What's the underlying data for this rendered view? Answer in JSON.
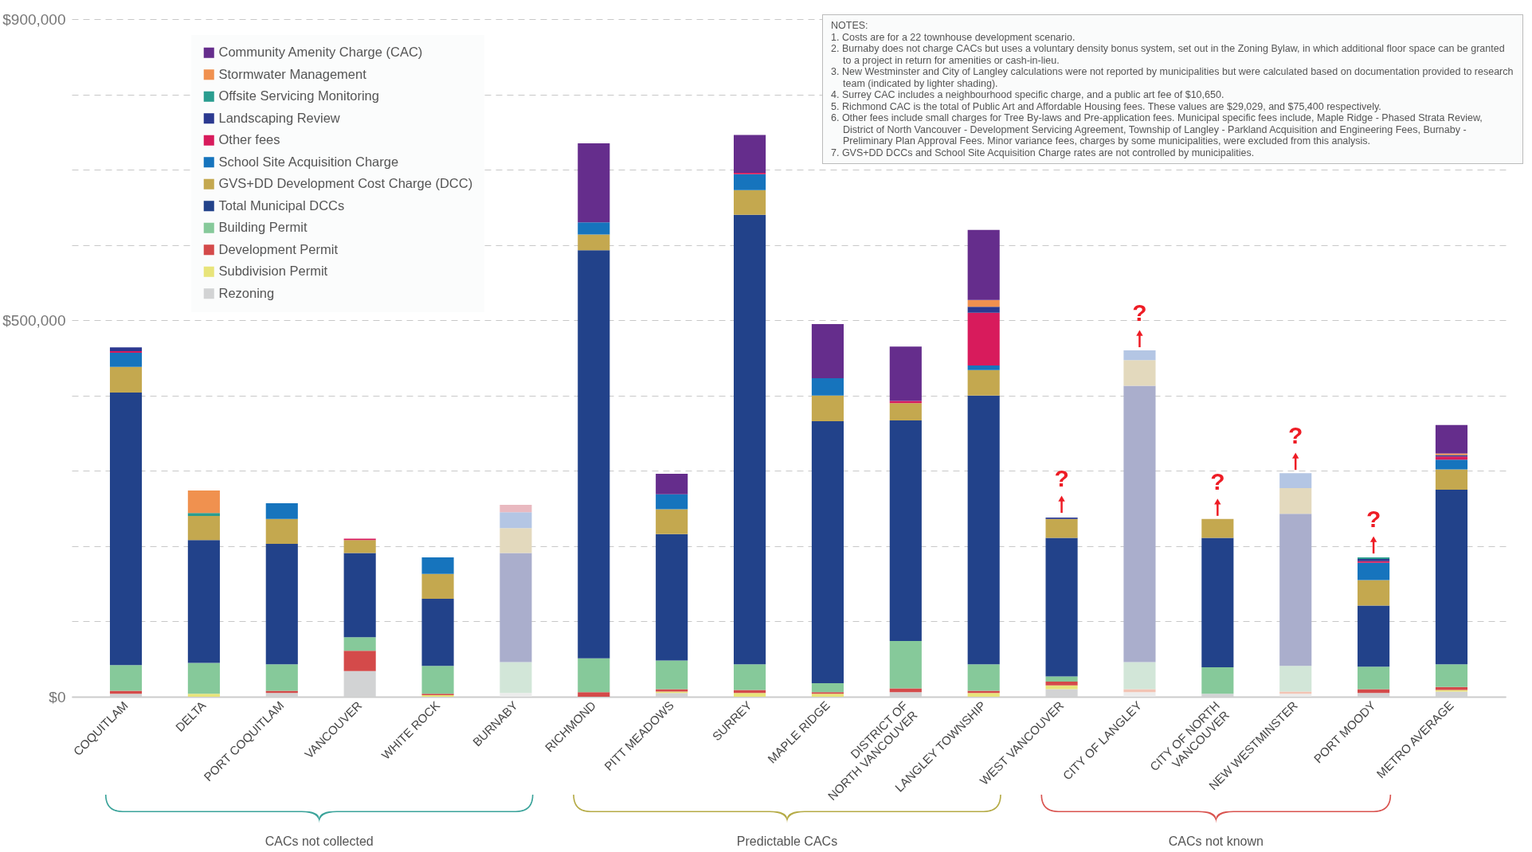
{
  "chart_data": {
    "type": "bar",
    "stacked": true,
    "grid": "y",
    "legend": "top left",
    "categories": [
      "COQUITLAM",
      "DELTA",
      "PORT COQUITLAM",
      "VANCOUVER",
      "WHITE ROCK",
      "BURNABY",
      "RICHMOND",
      "PITT MEADOWS",
      "SURREY",
      "MAPLE RIDGE",
      "DISTRICT OF NORTH VANCOUVER",
      "LANGLEY TOWNSHIP",
      "WEST VANCOUVER",
      "CITY OF LANGLEY",
      "CITY OF NORTH VANCOUVER",
      "NEW WESTMINSTER",
      "PORT MOODY",
      "METRO AVERAGE"
    ],
    "ylim": [
      0,
      900000
    ],
    "yticks": [
      {
        "value": 0,
        "label": "$0"
      },
      {
        "value": 100000,
        "label": null
      },
      {
        "value": 200000,
        "label": null
      },
      {
        "value": 300000,
        "label": null
      },
      {
        "value": 400000,
        "label": null
      },
      {
        "value": 500000,
        "label": "$500,000"
      },
      {
        "value": 600000,
        "label": null
      },
      {
        "value": 700000,
        "label": null
      },
      {
        "value": 800000,
        "label": null
      },
      {
        "value": 900000,
        "label": "$900,000"
      }
    ],
    "series": [
      {
        "name": "Rezoning",
        "color": "#d2d3d4",
        "colors": [
          "#d2d3d4",
          null,
          "#d2d3d4",
          "#d2d3d4",
          null,
          "#ececec",
          null,
          "#d2d3d4",
          null,
          null,
          "#d2d3d4",
          null,
          "#d2d3d4",
          "#ececec",
          "#d2d3d4",
          "#ececec",
          "#d2d3d4",
          "#d2d3d4"
        ],
        "values": [
          4000,
          null,
          5000,
          34000,
          null,
          5000,
          null,
          5000,
          null,
          null,
          6000,
          null,
          10000,
          6000,
          4000,
          4000,
          5000,
          7000
        ]
      },
      {
        "name": "Subdivision Permit",
        "color": "#e8e47a",
        "values": [
          null,
          4000,
          null,
          null,
          2000,
          null,
          null,
          2000,
          5000,
          4000,
          null,
          5000,
          5000,
          null,
          null,
          null,
          null,
          2000
        ]
      },
      {
        "name": "Development Permit",
        "color": "#d44a4a",
        "colors": [
          "#d44a4a",
          null,
          "#d44a4a",
          "#d44a4a",
          "#d44a4a",
          null,
          "#d44a4a",
          "#d44a4a",
          "#d44a4a",
          "#d44a4a",
          "#d44a4a",
          "#d44a4a",
          "#d44a4a",
          "#f2c4b4",
          null,
          "#f2c4b4",
          "#d44a4a",
          "#d44a4a"
        ],
        "values": [
          4000,
          null,
          3000,
          27000,
          2000,
          null,
          6000,
          3000,
          4000,
          2000,
          5000,
          3000,
          5000,
          4000,
          null,
          3000,
          5000,
          4000
        ]
      },
      {
        "name": "Building Permit",
        "color": "#86c99a",
        "colors": [
          "#86c99a",
          "#86c99a",
          "#86c99a",
          "#86c99a",
          "#86c99a",
          "#d2e6d8",
          "#86c99a",
          "#86c99a",
          "#86c99a",
          "#86c99a",
          "#86c99a",
          "#86c99a",
          "#86c99a",
          "#d2e6d8",
          "#86c99a",
          "#d2e6d8",
          "#86c99a",
          "#86c99a"
        ],
        "values": [
          34000,
          41000,
          35000,
          18000,
          37000,
          41000,
          45000,
          38000,
          34000,
          12000,
          63000,
          35000,
          7000,
          36000,
          35000,
          34000,
          30000,
          30000
        ]
      },
      {
        "name": "Total Municipal DCCs",
        "color": "#22428a",
        "colors": [
          "#22428a",
          "#22428a",
          "#22428a",
          "#22428a",
          "#22428a",
          "#aaaecc",
          "#22428a",
          "#22428a",
          "#22428a",
          "#22428a",
          "#22428a",
          "#22428a",
          "#22428a",
          "#aaaecc",
          "#22428a",
          "#aaaecc",
          "#22428a",
          "#22428a"
        ],
        "values": [
          362000,
          163000,
          160000,
          112000,
          89000,
          145000,
          542000,
          168000,
          597000,
          348000,
          293000,
          357000,
          184000,
          367000,
          172000,
          202000,
          81000,
          232000
        ]
      },
      {
        "name": "GVS+DD Development Cost Charge (DCC)",
        "color": "#c4a84f",
        "colors": [
          "#c4a84f",
          "#c4a84f",
          "#c4a84f",
          "#c4a84f",
          "#c4a84f",
          "#e3d9bd",
          "#c4a84f",
          "#c4a84f",
          "#c4a84f",
          "#c4a84f",
          "#c4a84f",
          "#c4a84f",
          "#c4a84f",
          "#e3d9bd",
          "#c4a84f",
          "#e3d9bd",
          "#c4a84f",
          "#c4a84f"
        ],
        "values": [
          34000,
          32000,
          33000,
          17000,
          33000,
          33000,
          21000,
          33000,
          33000,
          34000,
          23000,
          34000,
          25000,
          34000,
          25000,
          34000,
          34000,
          27000
        ]
      },
      {
        "name": "School Site Acquisition Charge",
        "color": "#1674bd",
        "colors": [
          "#1674bd",
          null,
          "#1674bd",
          null,
          "#1674bd",
          "#b4c6e4",
          "#1674bd",
          "#1674bd",
          "#1674bd",
          "#1674bd",
          null,
          "#1674bd",
          null,
          "#b4c6e4",
          null,
          "#b4c6e4",
          "#1674bd",
          "#1674bd"
        ],
        "values": [
          19000,
          null,
          21000,
          null,
          22000,
          21000,
          16000,
          20000,
          21000,
          23000,
          null,
          6000,
          null,
          13000,
          null,
          20000,
          23000,
          13000
        ]
      },
      {
        "name": "Other fees",
        "color": "#d81b5c",
        "colors": [
          "#d81b5c",
          null,
          null,
          "#d81b5c",
          null,
          "#e9b9c0",
          null,
          null,
          "#d81b5c",
          null,
          "#d81b5c",
          "#d81b5c",
          null,
          null,
          null,
          null,
          "#d81b5c",
          "#d81b5c"
        ],
        "values": [
          2000,
          null,
          null,
          2000,
          null,
          10000,
          null,
          null,
          2000,
          null,
          3000,
          70000,
          null,
          null,
          null,
          null,
          2000,
          4000
        ]
      },
      {
        "name": "Landscaping Review",
        "color": "#2b3990",
        "values": [
          5000,
          null,
          null,
          null,
          null,
          null,
          null,
          null,
          null,
          null,
          null,
          8000,
          2000,
          null,
          null,
          null,
          3000,
          2000
        ]
      },
      {
        "name": "Offsite Servicing Monitoring",
        "color": "#2a9d8f",
        "values": [
          null,
          4000,
          null,
          null,
          null,
          null,
          null,
          null,
          null,
          null,
          null,
          null,
          null,
          null,
          null,
          null,
          2000,
          null
        ]
      },
      {
        "name": "Stormwater Management",
        "color": "#f0914f",
        "values": [
          null,
          30000,
          null,
          null,
          null,
          null,
          null,
          null,
          null,
          null,
          null,
          9000,
          null,
          null,
          null,
          null,
          null,
          2000
        ]
      },
      {
        "name": "Community Amenity Charge (CAC)",
        "color": "#652d8c",
        "values": [
          null,
          null,
          null,
          null,
          null,
          null,
          105000,
          27000,
          50000,
          72000,
          72000,
          93000,
          null,
          null,
          null,
          null,
          null,
          38000
        ]
      }
    ],
    "annotations": [
      "CACs not collected",
      "Predictable CACs",
      "CACs not known",
      "NOTES:",
      "1. Costs are for a 22 townhouse development scenario.",
      "2. Burnaby does not charge CACs but uses a voluntary density bonus system, set out in the Zoning Bylaw, in which additional floor space can be granted to a project in return for amenities or cash-in-lieu.",
      "3. New Westminster and City of Langley calculations were not reported by municipalities but were calculated based on documentation provided to research team (indicated by lighter shading).",
      "4. Surrey CAC includes a neighbourhood specific charge, and a public art fee of $10,650.",
      "5. Richmond CAC is the total of Public Art and Affordable Housing fees. These values are $29,029, and $75,400 respectively.",
      "6. Other fees include small charges for Tree By-laws and Pre-application fees. Municipal specific fees include, Maple Ridge - Phased Strata Review, District of North Vancouver - Development Servicing Agreement, Township of Langley - Parkland Acquisition and Engineering Fees, Burnaby - Preliminary Plan Approval Fees. Minor variance fees, charges by some municipalities, were excluded from this analysis.",
      "7. GVS+DD DCCs and School Site Acquisition Charge rates are not controlled by municipalities.",
      {
        "text": "?",
        "x": "WEST VANCOUVER",
        "y": 240000
      },
      {
        "text": "?",
        "x": "CITY OF LANGLEY",
        "y": 460000
      },
      {
        "text": "?",
        "x": "CITY OF NORTH VANCOUVER",
        "y": 236000
      },
      {
        "text": "?",
        "x": "NEW WESTMINSTER",
        "y": 297000
      },
      {
        "text": "?",
        "x": "PORT MOODY",
        "y": 186000
      }
    ]
  }
}
